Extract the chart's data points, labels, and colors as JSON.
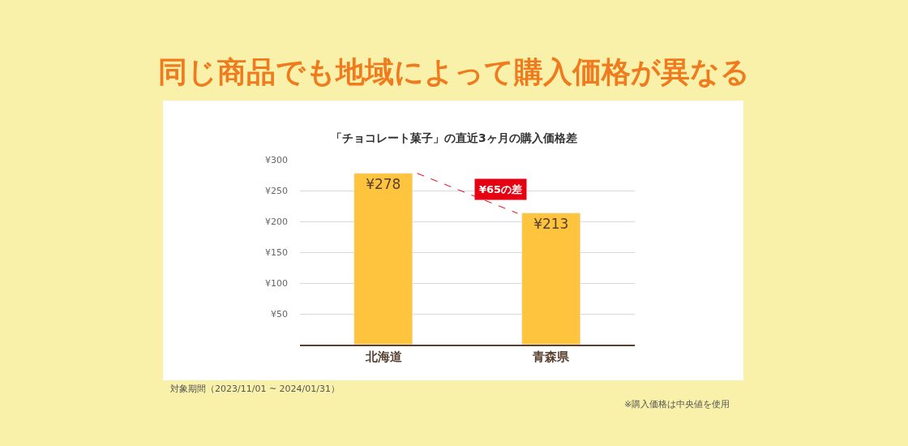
{
  "chart_data": {
    "type": "bar",
    "title": "同じ商品でも地域によって購入価格が異なる",
    "subtitle": "「チョコレート菓子」の直近3ヶ月の購入価格差",
    "categories": [
      "北海道",
      "青森県"
    ],
    "values": [
      278,
      213
    ],
    "value_labels": [
      "¥278",
      "¥213"
    ],
    "color": "#fec43e",
    "ylim": [
      0,
      300
    ],
    "yticks": [
      {
        "value": 50,
        "label": "¥50"
      },
      {
        "value": 100,
        "label": "¥100"
      },
      {
        "value": 150,
        "label": "¥150"
      },
      {
        "value": 200,
        "label": "¥200"
      },
      {
        "value": 250,
        "label": "¥250"
      },
      {
        "value": 300,
        "label": "¥300"
      }
    ],
    "grid": "y",
    "annotations": [
      "¥65の差",
      "対象期間（2023/11/01 ~ 2024/01/31）",
      "※購入価格は中央値を使用"
    ]
  }
}
